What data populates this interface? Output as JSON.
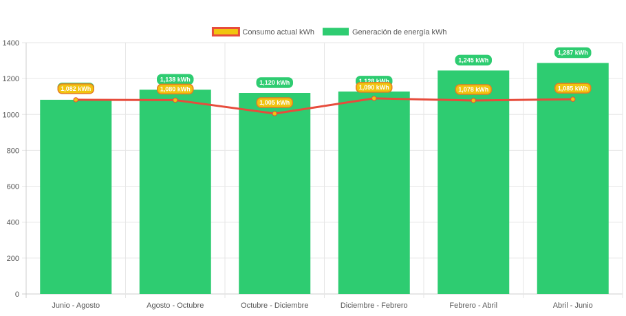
{
  "chart_data": {
    "type": "bar",
    "categories": [
      "Junio - Agosto",
      "Agosto - Octubre",
      "Octubre - Diciembre",
      "Diciembre - Febrero",
      "Febrero - Abril",
      "Abril - Junio"
    ],
    "series": [
      {
        "name": "Consumo actual kWh",
        "type": "line",
        "values": [
          1082,
          1080,
          1005,
          1090,
          1078,
          1085
        ],
        "color": "#e74c3c",
        "point_color": "#f1c40f",
        "data_labels": [
          "1,082 kWh",
          "1,080 kWh",
          "1,005 kWh",
          "1,090 kWh",
          "1,078 kWh",
          "1,085 kWh"
        ]
      },
      {
        "name": "Generación de energía kWh",
        "type": "bar",
        "values": [
          1082,
          1138,
          1120,
          1128,
          1245,
          1287
        ],
        "color": "#2ecc71",
        "data_labels": [
          "",
          "1,138 kWh",
          "1,120 kWh",
          "1,128 kWh",
          "1,245 kWh",
          "1,287 kWh"
        ]
      }
    ],
    "y_ticks": [
      "0",
      "200",
      "400",
      "600",
      "800",
      "1000",
      "1200",
      "1400"
    ],
    "ylim": [
      0,
      1400
    ],
    "grid": true,
    "legend_position": "top-center",
    "title": "",
    "xlabel": "",
    "ylabel": ""
  }
}
